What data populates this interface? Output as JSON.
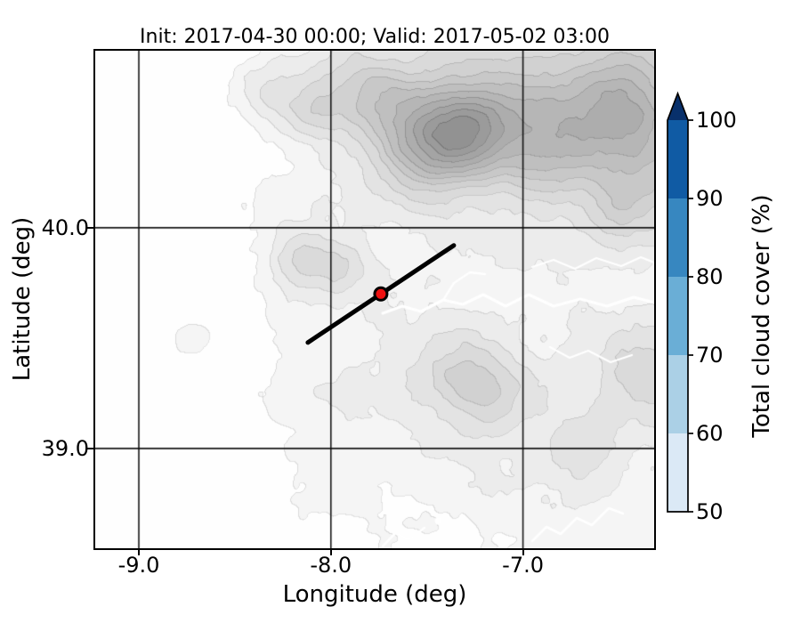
{
  "title": "Init: 2017-04-30 00:00; Valid: 2017-05-02 03:00",
  "axes": {
    "xlabel": "Longitude (deg)",
    "ylabel": "Latitude (deg)",
    "xlim": [
      -9.227,
      -6.317
    ],
    "ylim": [
      38.548,
      40.802
    ],
    "xticks": [
      {
        "value": -9.0,
        "label": "-9.0"
      },
      {
        "value": -8.0,
        "label": "-8.0"
      },
      {
        "value": -7.0,
        "label": "-7.0"
      }
    ],
    "yticks": [
      {
        "value": 40.0,
        "label": "40.0"
      },
      {
        "value": 39.0,
        "label": "39.0"
      }
    ],
    "grid_lons": [
      -9.0,
      -8.0,
      -7.0
    ],
    "grid_lats": [
      40.0,
      39.0
    ]
  },
  "colorbar": {
    "label": "Total cloud cover (%)",
    "min": 50,
    "max": 100,
    "extend": "max",
    "extend_max_color": "#08306b",
    "segments": [
      {
        "from": 50,
        "to": 60,
        "color": "#dbe9f6"
      },
      {
        "from": 60,
        "to": 70,
        "color": "#abd0e6"
      },
      {
        "from": 70,
        "to": 80,
        "color": "#6aaed6"
      },
      {
        "from": 80,
        "to": 90,
        "color": "#3787c0"
      },
      {
        "from": 90,
        "to": 100,
        "color": "#105ba4"
      }
    ],
    "ticks": [
      {
        "value": 100,
        "label": "100"
      },
      {
        "value": 90,
        "label": "90"
      },
      {
        "value": 80,
        "label": "80"
      },
      {
        "value": 70,
        "label": "70"
      },
      {
        "value": 60,
        "label": "60"
      },
      {
        "value": 50,
        "label": "50"
      }
    ]
  },
  "chart_data": {
    "type": "map",
    "subtype": "grayscale filled-contour terrain basemap with cloud-cover colorbar",
    "title": "Init: 2017-04-30 00:00; Valid: 2017-05-02 03:00",
    "xlabel": "Longitude (deg)",
    "ylabel": "Latitude (deg)",
    "xlim": [
      -9.227,
      -6.317
    ],
    "ylim": [
      38.548,
      40.802
    ],
    "x_ticks": [
      -9.0,
      -8.0,
      -7.0
    ],
    "y_ticks": [
      39.0,
      40.0
    ],
    "graticule_lons": [
      -9.0,
      -8.0,
      -7.0
    ],
    "graticule_lats": [
      39.0,
      40.0
    ],
    "colorbar": {
      "label": "Total cloud cover (%)",
      "range": [
        50,
        100
      ],
      "tick_step": 10,
      "extend": "max"
    },
    "note": "no cloud-cover shading visible inside map (all values below 50%); only terrain shown",
    "transect_line": {
      "color": "#000000",
      "from": [
        -8.12,
        39.48
      ],
      "to": [
        -7.36,
        39.92
      ]
    },
    "marker": {
      "lon": -7.74,
      "lat": 39.7,
      "color": "#ee1111",
      "edge_color": "#000000"
    }
  }
}
